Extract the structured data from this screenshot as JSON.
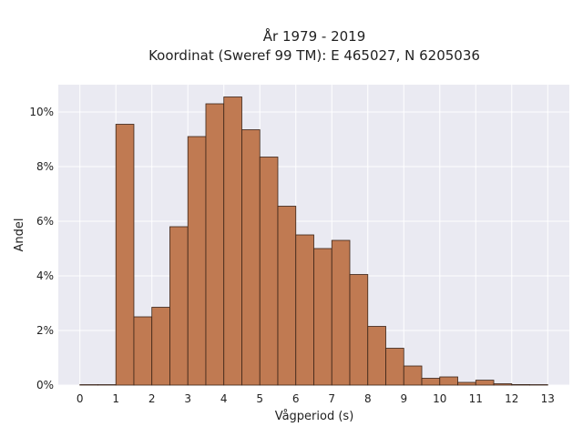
{
  "chart_data": {
    "type": "bar",
    "title_lines": [
      "År 1979 - 2019",
      "Koordinat (Sweref 99 TM): E 465027, N 6205036"
    ],
    "xlabel": "Vågperiod (s)",
    "ylabel": "Andel",
    "x_bin_edges": [
      0,
      0.5,
      1,
      1.5,
      2,
      2.5,
      3,
      3.5,
      4,
      4.5,
      5,
      5.5,
      6,
      6.5,
      7,
      7.5,
      8,
      8.5,
      9,
      9.5,
      10,
      10.5,
      11,
      11.5,
      12,
      12.5,
      13
    ],
    "values": [
      0.0,
      0.0,
      9.55,
      2.5,
      2.85,
      5.8,
      9.1,
      10.3,
      10.55,
      9.35,
      8.35,
      6.55,
      5.5,
      5.0,
      5.3,
      4.05,
      2.15,
      1.35,
      0.7,
      0.25,
      0.3,
      0.1,
      0.18,
      0.05,
      0.02,
      0.0
    ],
    "x_ticks": [
      0,
      1,
      2,
      3,
      4,
      5,
      6,
      7,
      8,
      9,
      10,
      11,
      12,
      13
    ],
    "x_tick_labels": [
      "0",
      "1",
      "2",
      "3",
      "4",
      "5",
      "6",
      "7",
      "8",
      "9",
      "10",
      "11",
      "12",
      "13"
    ],
    "y_ticks": [
      0,
      2,
      4,
      6,
      8,
      10
    ],
    "y_tick_labels": [
      "0%",
      "2%",
      "4%",
      "6%",
      "8%",
      "10%"
    ],
    "xlim": [
      -0.6,
      13.6
    ],
    "ylim": [
      0,
      11
    ],
    "grid": true,
    "colors": {
      "bar_fill": "#c07a52",
      "bar_edge": "#3a2418",
      "plot_background": "#eaeaf2",
      "grid": "#ffffff"
    }
  }
}
